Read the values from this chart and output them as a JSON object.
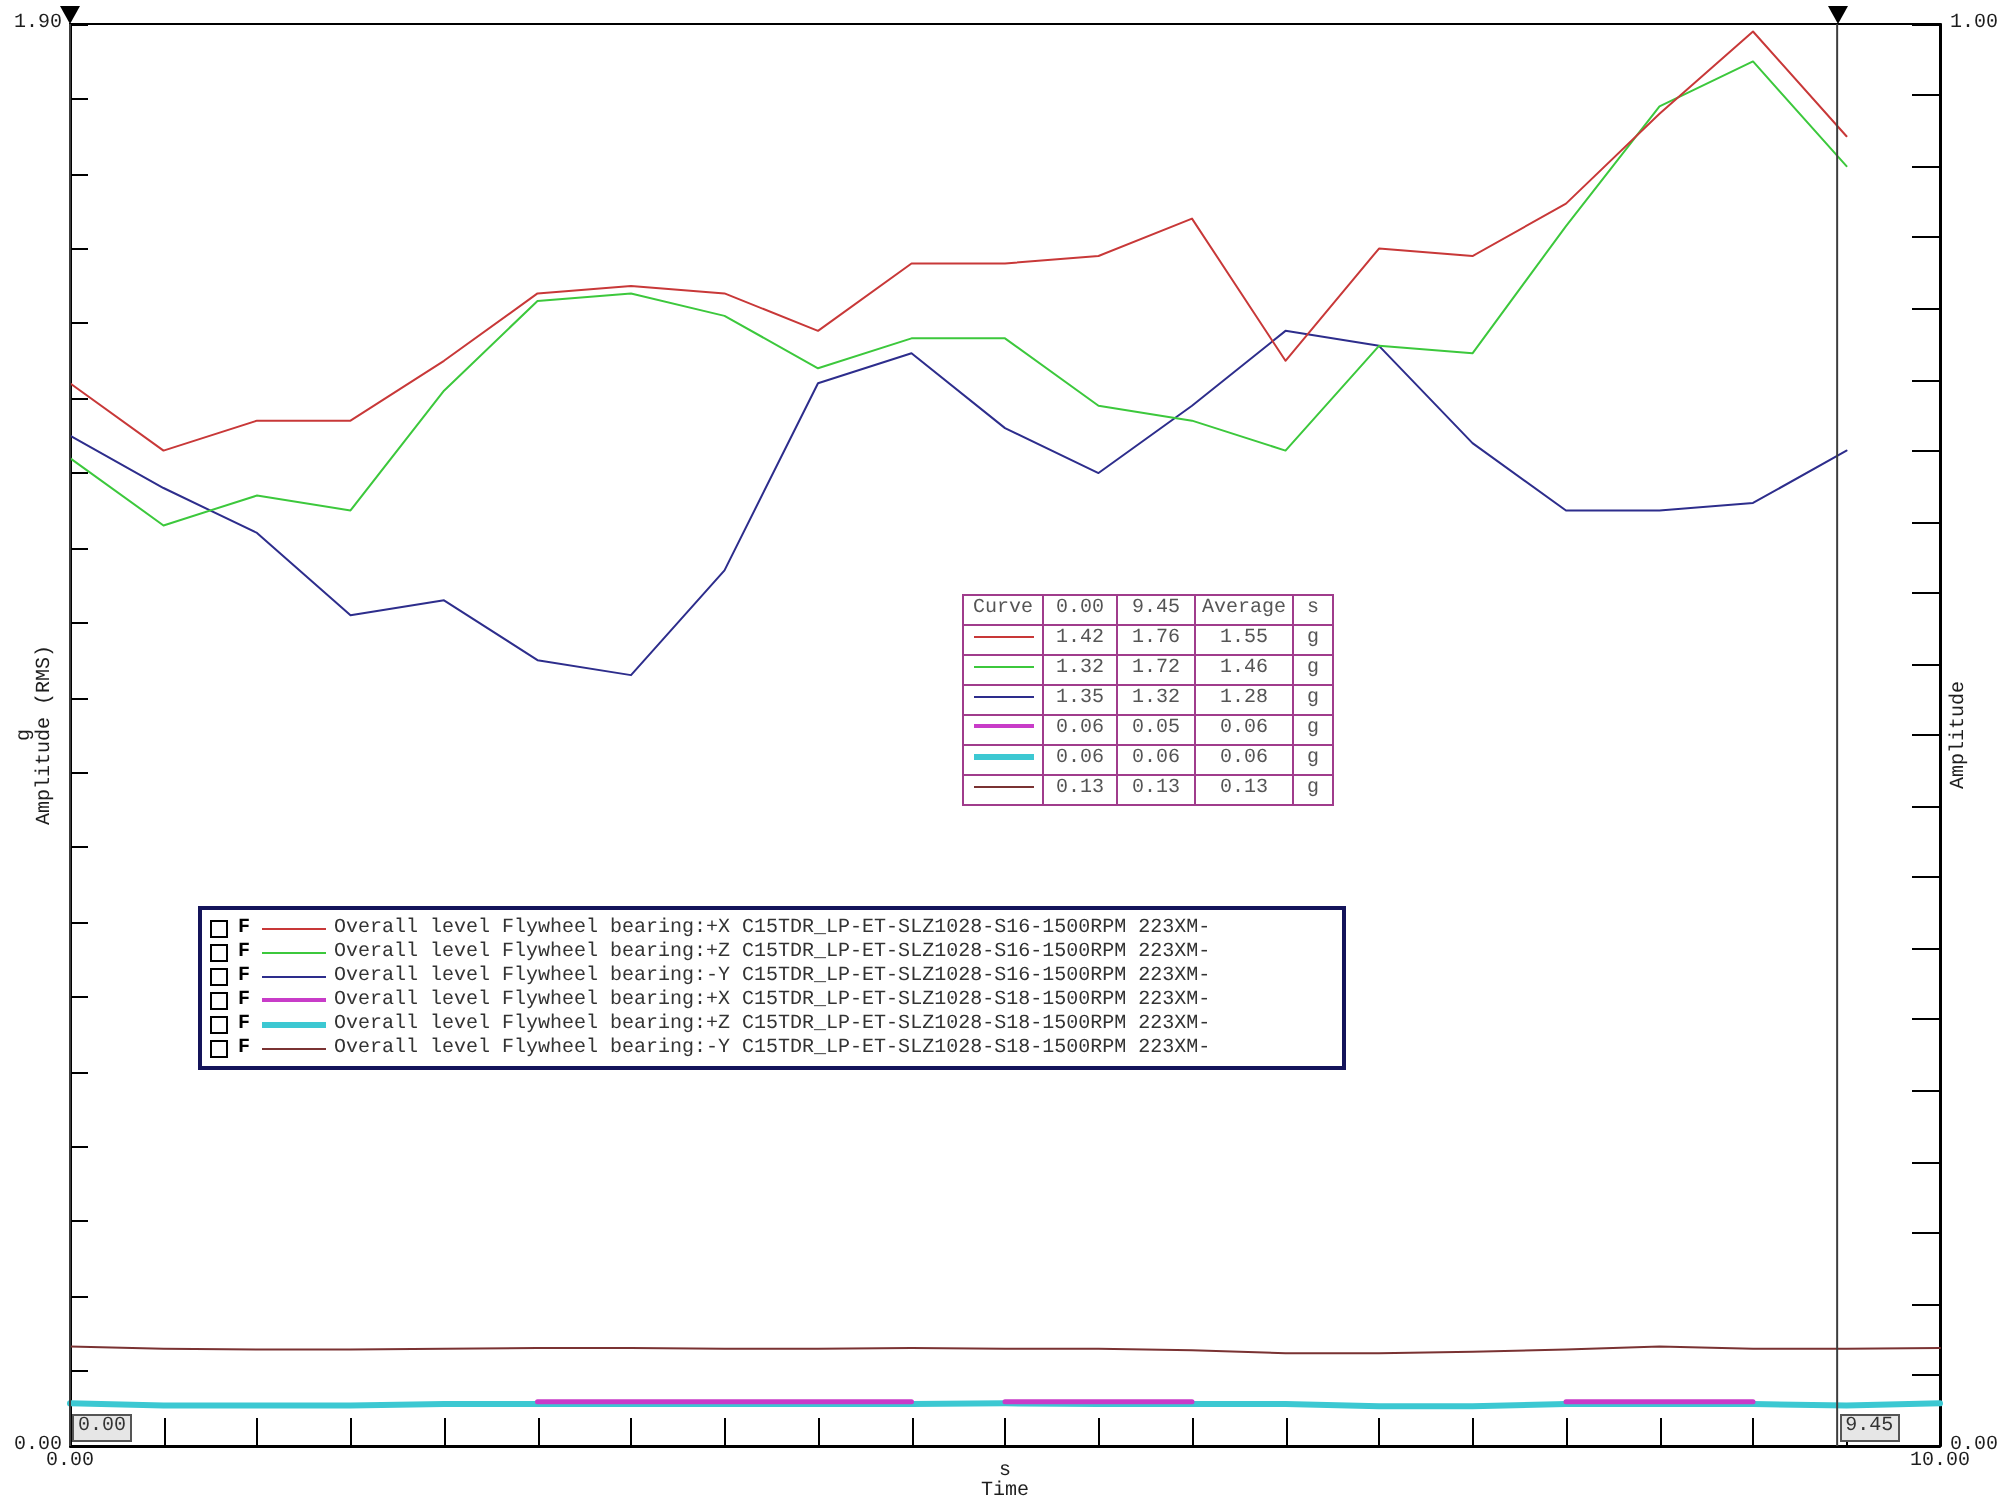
{
  "chart_data": {
    "type": "line",
    "xlabel": "s\nTime",
    "ylabel": "g\nAmplitude (RMS)",
    "y2label": "Amplitude",
    "x": [
      0,
      0.5,
      1,
      1.5,
      2,
      2.5,
      3,
      3.5,
      4,
      4.5,
      5,
      5.5,
      6,
      6.5,
      7,
      7.5,
      8,
      8.5,
      9,
      9.5
    ],
    "series": [
      {
        "name": "Overall level Flywheel bearing:+X C15TDR_LP-ET-SLZ1028-S16-1500RPM 223XM-",
        "color": "#c83838",
        "values": [
          1.42,
          1.33,
          1.37,
          1.37,
          1.45,
          1.54,
          1.55,
          1.54,
          1.49,
          1.58,
          1.58,
          1.59,
          1.64,
          1.45,
          1.6,
          1.59,
          1.66,
          1.78,
          1.89,
          1.75
        ]
      },
      {
        "name": "Overall level Flywheel bearing:+Z C15TDR_LP-ET-SLZ1028-S16-1500RPM 223XM-",
        "color": "#3cc83c",
        "values": [
          1.32,
          1.23,
          1.27,
          1.25,
          1.41,
          1.53,
          1.54,
          1.51,
          1.44,
          1.48,
          1.48,
          1.39,
          1.37,
          1.33,
          1.47,
          1.46,
          1.63,
          1.79,
          1.85,
          1.71
        ]
      },
      {
        "name": "Overall level Flywheel bearing:-Y C15TDR_LP-ET-SLZ1028-S16-1500RPM 223XM-",
        "color": "#2d2d8c",
        "values": [
          1.35,
          1.28,
          1.22,
          1.11,
          1.13,
          1.05,
          1.03,
          1.17,
          1.42,
          1.46,
          1.36,
          1.3,
          1.39,
          1.49,
          1.47,
          1.34,
          1.25,
          1.25,
          1.26,
          1.33
        ]
      },
      {
        "name": "Overall level Flywheel bearing:+X C15TDR_LP-ET-SLZ1028-S18-1500RPM 223XM-",
        "color": "#c83cc8",
        "x": [
          2.5,
          3,
          3.5,
          4,
          4.5,
          4.75,
          5,
          5.5,
          6,
          7,
          8,
          8.5,
          9
        ],
        "values": [
          0.059,
          0.059,
          0.059,
          0.059,
          0.059,
          null,
          0.059,
          0.059,
          0.059,
          null,
          0.059,
          0.059,
          0.059
        ]
      },
      {
        "name": "Overall level Flywheel bearing:+Z C15TDR_LP-ET-SLZ1028-S18-1500RPM 223XM-",
        "color": "#3cc8d2",
        "x": [
          0,
          0.5,
          1,
          1.5,
          2,
          2.5,
          3,
          3.5,
          4,
          4.5,
          5,
          5.5,
          6,
          6.5,
          7,
          7.5,
          8,
          8.5,
          9,
          9.5,
          10
        ],
        "values": [
          0.057,
          0.054,
          0.054,
          0.054,
          0.056,
          0.056,
          0.056,
          0.056,
          0.056,
          0.056,
          0.057,
          0.056,
          0.056,
          0.056,
          0.053,
          0.053,
          0.056,
          0.056,
          0.056,
          0.054,
          0.057
        ]
      },
      {
        "name": "Overall level Flywheel bearing:-Y C15TDR_LP-ET-SLZ1028-S18-1500RPM 223XM-",
        "color": "#7a3232",
        "x": [
          0,
          0.5,
          1,
          1.5,
          2,
          2.5,
          3,
          3.5,
          4,
          4.5,
          5,
          5.5,
          6,
          6.5,
          7,
          7.5,
          8,
          8.5,
          9,
          9.5,
          10
        ],
        "values": [
          0.133,
          0.13,
          0.129,
          0.129,
          0.13,
          0.131,
          0.131,
          0.13,
          0.13,
          0.131,
          0.13,
          0.13,
          0.128,
          0.124,
          0.124,
          0.126,
          0.129,
          0.133,
          0.13,
          0.13,
          0.131
        ]
      }
    ],
    "xlim": [
      0,
      10
    ],
    "xticks": [
      {
        "value": 0,
        "label": "0.00"
      },
      {
        "value": 0.5,
        "label": null
      },
      {
        "value": 1,
        "label": null
      },
      {
        "value": 1.5,
        "label": null
      },
      {
        "value": 2,
        "label": null
      },
      {
        "value": 2.5,
        "label": null
      },
      {
        "value": 3,
        "label": null
      },
      {
        "value": 3.5,
        "label": null
      },
      {
        "value": 4,
        "label": null
      },
      {
        "value": 4.5,
        "label": null
      },
      {
        "value": 5,
        "label": null
      },
      {
        "value": 5.5,
        "label": null
      },
      {
        "value": 6,
        "label": null
      },
      {
        "value": 6.5,
        "label": null
      },
      {
        "value": 7,
        "label": null
      },
      {
        "value": 7.5,
        "label": null
      },
      {
        "value": 8,
        "label": null
      },
      {
        "value": 8.5,
        "label": null
      },
      {
        "value": 9,
        "label": null
      },
      {
        "value": 9.5,
        "label": null
      },
      {
        "value": 10,
        "label": "10.00"
      }
    ],
    "ylim": [
      0,
      1.9
    ],
    "yticks": [
      {
        "value": 0,
        "label": "0.00"
      },
      {
        "value": 0.1,
        "label": null
      },
      {
        "value": 0.2,
        "label": null
      },
      {
        "value": 0.3,
        "label": null
      },
      {
        "value": 0.4,
        "label": null
      },
      {
        "value": 0.5,
        "label": null
      },
      {
        "value": 0.6,
        "label": null
      },
      {
        "value": 0.7,
        "label": null
      },
      {
        "value": 0.8,
        "label": null
      },
      {
        "value": 0.9,
        "label": null
      },
      {
        "value": 1,
        "label": null
      },
      {
        "value": 1.1,
        "label": null
      },
      {
        "value": 1.2,
        "label": null
      },
      {
        "value": 1.3,
        "label": null
      },
      {
        "value": 1.4,
        "label": null
      },
      {
        "value": 1.5,
        "label": null
      },
      {
        "value": 1.6,
        "label": null
      },
      {
        "value": 1.7,
        "label": null
      },
      {
        "value": 1.8,
        "label": null
      },
      {
        "value": 1.9,
        "label": "1.90"
      }
    ],
    "y2lim": [
      0,
      1
    ],
    "y2ticks": [
      {
        "value": 0,
        "label": "0.00"
      },
      {
        "value": 0.05,
        "label": null
      },
      {
        "value": 0.1,
        "label": null
      },
      {
        "value": 0.15,
        "label": null
      },
      {
        "value": 0.2,
        "label": null
      },
      {
        "value": 0.25,
        "label": null
      },
      {
        "value": 0.3,
        "label": null
      },
      {
        "value": 0.35,
        "label": null
      },
      {
        "value": 0.4,
        "label": null
      },
      {
        "value": 0.45,
        "label": null
      },
      {
        "value": 0.5,
        "label": null
      },
      {
        "value": 0.55,
        "label": null
      },
      {
        "value": 0.6,
        "label": null
      },
      {
        "value": 0.65,
        "label": null
      },
      {
        "value": 0.7,
        "label": null
      },
      {
        "value": 0.75,
        "label": null
      },
      {
        "value": 0.8,
        "label": null
      },
      {
        "value": 0.85,
        "label": null
      },
      {
        "value": 0.9,
        "label": null
      },
      {
        "value": 0.95,
        "label": null
      },
      {
        "value": 1,
        "label": "1.00"
      }
    ],
    "ref_lines": [
      {
        "axis": "x",
        "value": 0,
        "label": "0.00"
      },
      {
        "axis": "x",
        "value": 9.45,
        "label": "9.45"
      }
    ],
    "annotations": [
      "Curve",
      "0.00",
      "9.45",
      "Average",
      "s",
      "1.42",
      "1.76",
      "1.55",
      "g",
      "1.32",
      "1.72",
      "1.46",
      "g",
      "1.35",
      "1.32",
      "1.28",
      "g",
      "0.06",
      "0.05",
      "0.06",
      "g",
      "0.06",
      "0.06",
      "0.06",
      "g",
      "0.13",
      "0.13",
      "0.13",
      "g",
      "F",
      "F",
      "F",
      "F",
      "F",
      "F"
    ],
    "legend": "left"
  }
}
